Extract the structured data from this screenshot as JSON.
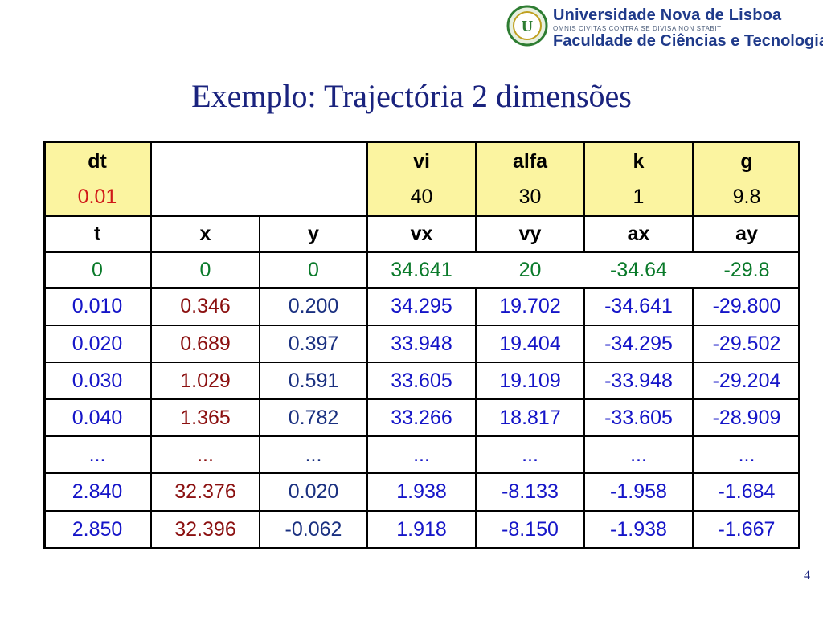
{
  "header": {
    "university_line": "Universidade Nova de Lisboa",
    "motto": "OMNIS CIVITAS CONTRA SE DIVISA NON STABIT",
    "faculty_line": "Faculdade de Ciências e Tecnologia",
    "logo_icon": "unl-emblem-icon"
  },
  "title": "Exemplo: Trajectória 2 dimensões",
  "page_number": "4",
  "params": {
    "labels": [
      "dt",
      "",
      "",
      "vi",
      "alfa",
      "k",
      "g"
    ],
    "values": [
      "0.01",
      "",
      "",
      "40",
      "30",
      "1",
      "9.8"
    ]
  },
  "columns": [
    "t",
    "x",
    "y",
    "vx",
    "vy",
    "ax",
    "ay"
  ],
  "initial_row": [
    "0",
    "0",
    "0",
    "34.641",
    "20",
    "-34.64",
    "-29.8"
  ],
  "rows": [
    [
      "0.010",
      "0.346",
      "0.200",
      "34.295",
      "19.702",
      "-34.641",
      "-29.800"
    ],
    [
      "0.020",
      "0.689",
      "0.397",
      "33.948",
      "19.404",
      "-34.295",
      "-29.502"
    ],
    [
      "0.030",
      "1.029",
      "0.591",
      "33.605",
      "19.109",
      "-33.948",
      "-29.204"
    ],
    [
      "0.040",
      "1.365",
      "0.782",
      "33.266",
      "18.817",
      "-33.605",
      "-28.909"
    ],
    [
      "...",
      "...",
      "...",
      "...",
      "...",
      "...",
      "..."
    ],
    [
      "2.840",
      "32.376",
      "0.020",
      "1.938",
      "-8.133",
      "-1.958",
      "-1.684"
    ],
    [
      "2.850",
      "32.396",
      "-0.062",
      "1.918",
      "-8.150",
      "-1.938",
      "-1.667"
    ]
  ],
  "colors": {
    "header_fill": "#fbf4a0",
    "title": "#1a237e",
    "t_col": "#1515c8",
    "x_col": "#8b1010",
    "y_col": "#1a3080",
    "initial": "#0a7a2a",
    "dt_value": "#d01818"
  }
}
